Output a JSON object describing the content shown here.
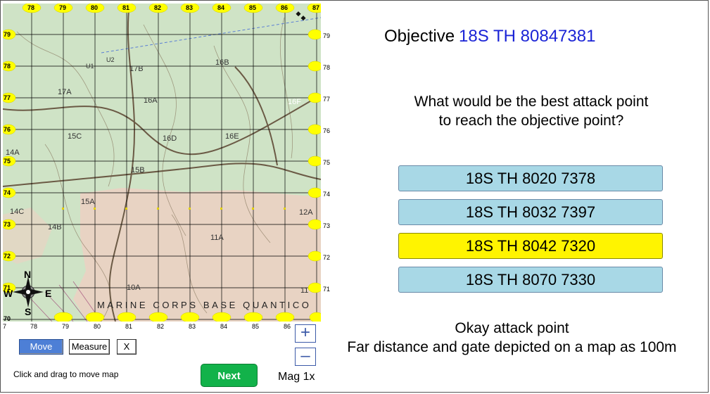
{
  "map": {
    "top_labels": [
      "78",
      "79",
      "80",
      "81",
      "82",
      "83",
      "84",
      "85",
      "86",
      "87"
    ],
    "left_labels": [
      "79",
      "78",
      "77",
      "76",
      "75",
      "74",
      "73",
      "72",
      "71",
      "70"
    ],
    "right_labels": [
      "79",
      "78",
      "77",
      "76",
      "75",
      "74",
      "73",
      "72",
      "71"
    ],
    "bottom_labels": [
      "7",
      "78",
      "79",
      "80",
      "81",
      "82",
      "83",
      "84",
      "85",
      "86"
    ],
    "area_labels": [
      "U1",
      "U2",
      "17B",
      "16B",
      "17A",
      "16A",
      "16F",
      "15C",
      "16D",
      "16E",
      "14A",
      "15B",
      "15A",
      "14C",
      "14B",
      "12A",
      "11A",
      "10A",
      "11"
    ],
    "base_name": "MARINE CORPS BASE QUANTICO",
    "compass": {
      "n": "N",
      "s": "S",
      "e": "E",
      "w": "W"
    },
    "colors": {
      "forest": "#cfe3c6",
      "clearing": "#e8d3c3",
      "grid_marker": "#ffff00",
      "road": "#6b5a45",
      "line": "#000000"
    }
  },
  "tools": {
    "move": "Move",
    "measure": "Measure",
    "clear": "X",
    "hint": "Click and drag to move map",
    "next": "Next",
    "zoom_in": "+",
    "zoom_out": "–",
    "mag": "Mag 1x"
  },
  "objective": {
    "label": "Objective",
    "grid": "18S TH 80847381"
  },
  "question": {
    "line1": "What would be the best attack point",
    "line2": "to reach the objective point?"
  },
  "answers": [
    {
      "text": "18S TH 8020 7378",
      "selected": false
    },
    {
      "text": "18S TH 8032 7397",
      "selected": false
    },
    {
      "text": "18S TH 8042 7320",
      "selected": true
    },
    {
      "text": "18S TH 8070 7330",
      "selected": false
    }
  ],
  "feedback": {
    "line1": "Okay attack point",
    "line2": "Far distance and gate depicted on a map as 100m"
  }
}
